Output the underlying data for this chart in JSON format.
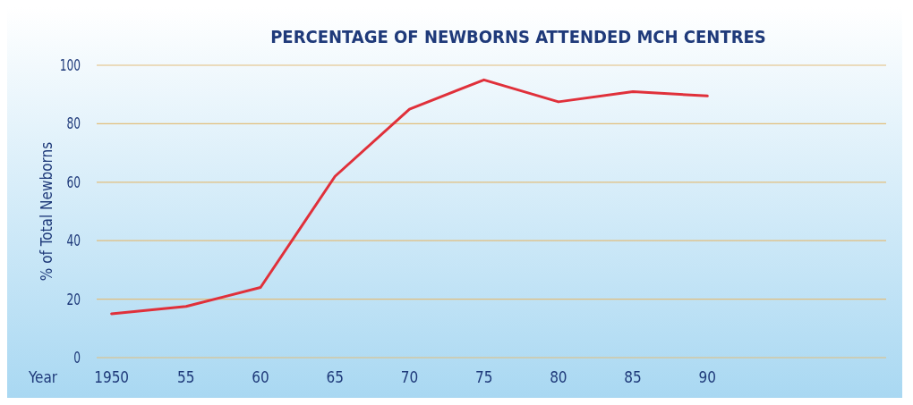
{
  "chart_data": {
    "type": "line",
    "title": "PERCENTAGE OF NEWBORNS ATTENDED MCH CENTRES",
    "xlabel": "Year",
    "ylabel": "% of Total Newborns",
    "x": [
      1950,
      1955,
      1960,
      1965,
      1970,
      1975,
      1980,
      1985,
      1990
    ],
    "series": [
      {
        "color": "#e0303a",
        "values": [
          15,
          17.5,
          24,
          62,
          85,
          95,
          87.5,
          91,
          89.5
        ]
      }
    ],
    "xlim": [
      1949,
      2002
    ],
    "xticks": [
      {
        "value": 1950,
        "label": "1950"
      },
      {
        "value": 1955,
        "label": "55"
      },
      {
        "value": 1960,
        "label": "60"
      },
      {
        "value": 1965,
        "label": "65"
      },
      {
        "value": 1970,
        "label": "70"
      },
      {
        "value": 1975,
        "label": "75"
      },
      {
        "value": 1980,
        "label": "80"
      },
      {
        "value": 1985,
        "label": "85"
      },
      {
        "value": 1990,
        "label": "90"
      }
    ],
    "ylim": [
      0,
      100
    ],
    "yticks": [
      0,
      20,
      40,
      60,
      80,
      100
    ],
    "grid": "y",
    "marker": "none",
    "line_style": "solid"
  }
}
